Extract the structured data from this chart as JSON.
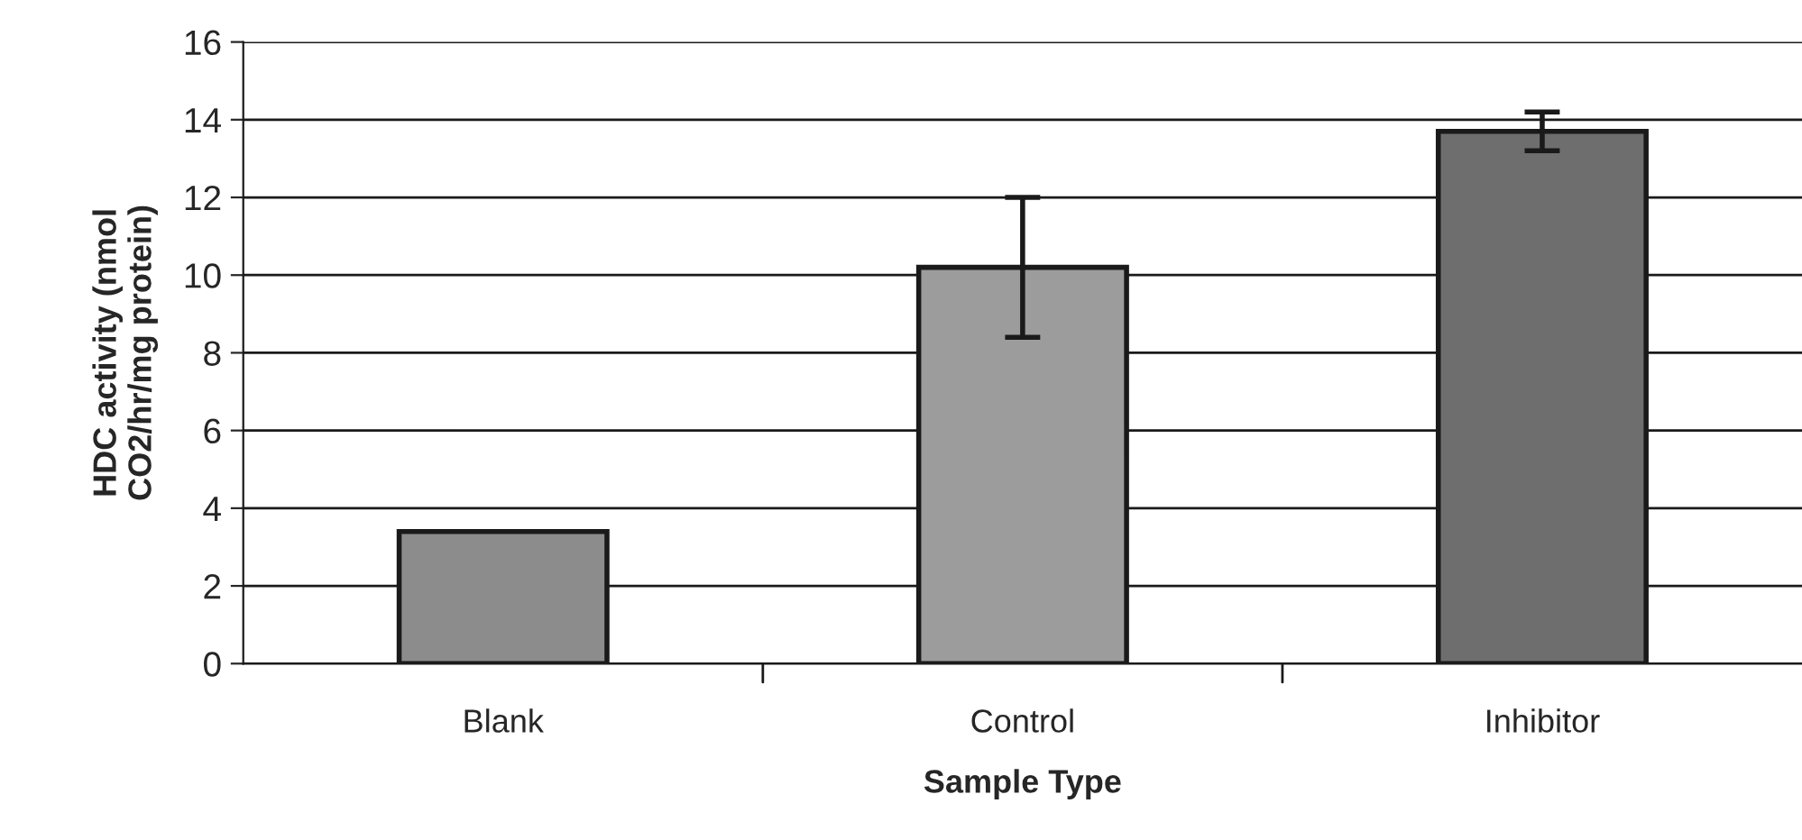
{
  "chart_data": {
    "type": "bar",
    "categories": [
      "Blank",
      "Control",
      "Inhibitor"
    ],
    "values": [
      3.4,
      10.2,
      13.7
    ],
    "errors": [
      null,
      1.8,
      0.5
    ],
    "colors": [
      "#8c8c8c",
      "#9c9c9c",
      "#6e6e6e"
    ],
    "xlabel": "Sample Type",
    "ylabel": "HDC activity (nmol\nCO2/hr/mg protein)",
    "ylim": [
      0,
      16
    ],
    "yticks": [
      0,
      2,
      4,
      6,
      8,
      10,
      12,
      14,
      16
    ],
    "grid": "y"
  }
}
